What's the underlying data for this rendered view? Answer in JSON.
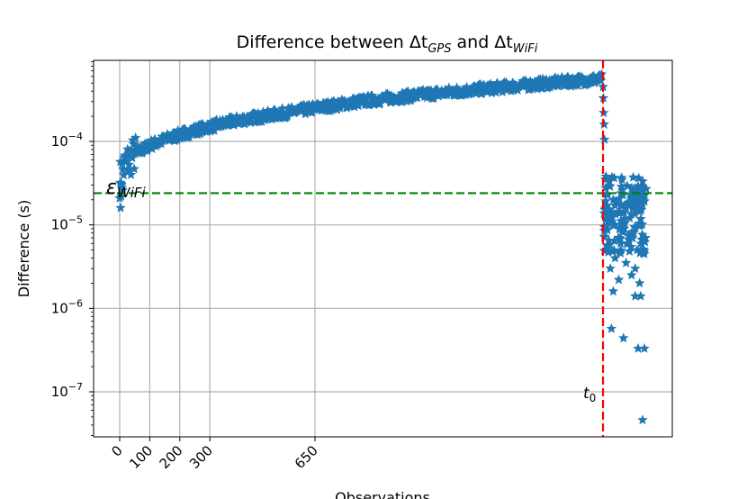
{
  "chart_data": {
    "type": "scatter",
    "title": {
      "prefix": "Difference between Δt",
      "sub1": "GPS",
      "middle": " and Δt",
      "sub2": "WiFi"
    },
    "xlabel": "Observations",
    "ylabel": "Difference (s)",
    "y_scale": "log",
    "ylim": [
      3e-08,
      0.001
    ],
    "x_ticks": [
      0,
      100,
      200,
      300,
      650
    ],
    "x_tick_labels": [
      "0",
      "100",
      "200",
      "300",
      "650"
    ],
    "y_ticks": [
      {
        "value": 1e-07,
        "base": "10",
        "exp": "−7"
      },
      {
        "value": 1e-06,
        "base": "10",
        "exp": "−6"
      },
      {
        "value": 1e-05,
        "base": "10",
        "exp": "−5"
      },
      {
        "value": 0.0001,
        "base": "10",
        "exp": "−4"
      }
    ],
    "grid": true,
    "marker": "star",
    "marker_color": "#1f77b4",
    "series_trend": {
      "x": [
        0,
        20,
        50,
        100,
        150,
        200,
        250,
        300,
        400,
        500,
        650,
        800,
        1000,
        1200,
        1400,
        1550,
        1610
      ],
      "y": [
        3.5e-05,
        5.5e-05,
        7e-05,
        9e-05,
        0.000105,
        0.00012,
        0.000135,
        0.00015,
        0.00018,
        0.000205,
        0.00025,
        0.0003,
        0.00036,
        0.00042,
        0.00049,
        0.00054,
        0.00056
      ]
    },
    "series_drop": {
      "x": [
        1612,
        1613,
        1614,
        1615,
        1616,
        1620,
        1625,
        1630,
        1635,
        1640,
        1645,
        1650,
        1655,
        1660,
        1665,
        1670,
        1675,
        1680,
        1685,
        1690,
        1695,
        1700,
        1705,
        1710,
        1715,
        1720,
        1725,
        1730,
        1632,
        1645,
        1660,
        1675,
        1690,
        1700,
        1712,
        1725,
        1640,
        1655,
        1700,
        1715,
        1725,
        1635,
        1668,
        1708,
        1720
      ],
      "y": [
        0.00045,
        0.00033,
        0.00022,
        0.00016,
        0.000105,
        3.8e-05,
        2.3e-05,
        1.5e-05,
        1.2e-05,
        2e-05,
        1e-05,
        1.8e-05,
        7e-06,
        1.4e-05,
        2.6e-05,
        9e-06,
        1.6e-05,
        6e-06,
        1.2e-05,
        2.2e-05,
        8e-06,
        1.5e-05,
        5e-06,
        2.5e-05,
        1e-05,
        1.8e-05,
        7e-06,
        2.7e-05,
        3e-06,
        4e-06,
        6e-06,
        3.5e-06,
        2.5e-06,
        3e-06,
        2e-06,
        4.5e-06,
        1.6e-06,
        2.2e-06,
        1.4e-06,
        1.4e-06,
        3.3e-07,
        5.7e-07,
        4.4e-07,
        3.3e-07,
        4.6e-08
      ]
    },
    "h_line": {
      "value": 2.4e-05,
      "color": "#008000",
      "style": "dashed"
    },
    "h_line_label": {
      "base": "ε",
      "sub": "WiFi"
    },
    "v_line": {
      "x": 1612,
      "color": "#ff0000",
      "style": "dashed"
    },
    "v_line_label": {
      "base": "t",
      "sub": "0"
    }
  }
}
